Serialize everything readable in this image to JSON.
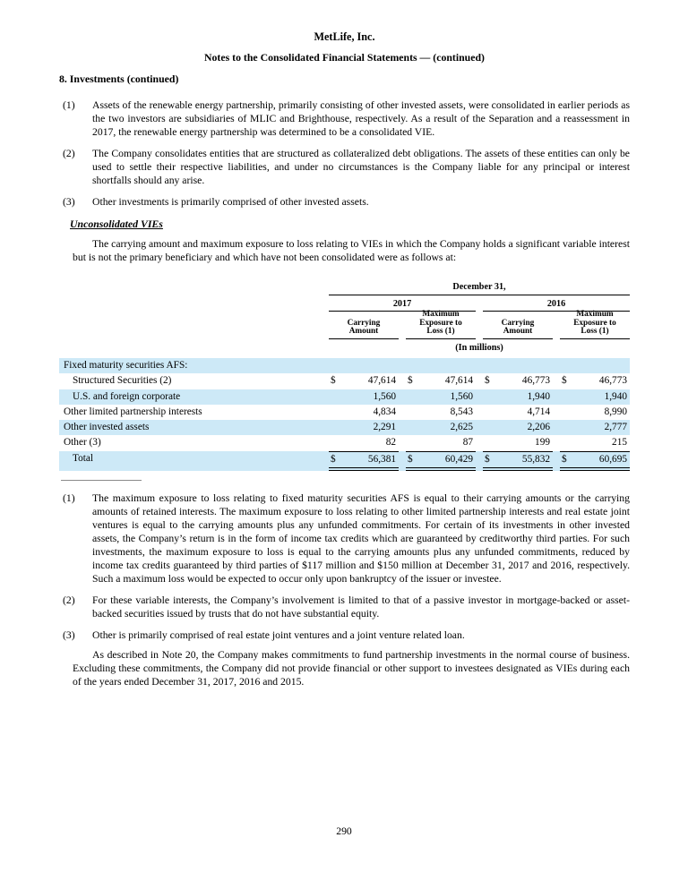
{
  "header": {
    "company": "MetLife, Inc.",
    "subtitle": "Notes to the Consolidated Financial Statements — (continued)",
    "section": "8. Investments (continued)"
  },
  "notes": [
    {
      "num": "(1)",
      "text": "Assets of the renewable energy partnership, primarily consisting of other invested assets, were consolidated in earlier periods as the two investors are subsidiaries of MLIC and Brighthouse, respectively. As a result of the Separation and a reassessment in 2017, the renewable energy partnership was determined to be a consolidated VIE."
    },
    {
      "num": "(2)",
      "text": "The Company consolidates entities that are structured as collateralized debt obligations. The assets of these entities can only be used to settle their respective liabilities, and under no circumstances is the Company liable for any principal or interest shortfalls should any arise."
    },
    {
      "num": "(3)",
      "text": "Other investments is primarily comprised of other invested assets."
    }
  ],
  "unconsolidated": {
    "heading": "Unconsolidated VIEs",
    "intro": "The carrying amount and maximum exposure to loss relating to VIEs in which the Company holds a significant variable interest but is not the primary beneficiary and which have not been consolidated were as follows at:"
  },
  "table": {
    "date_header": "December 31,",
    "years": [
      "2017",
      "2016"
    ],
    "col_headers": [
      "Carrying Amount",
      "Maximum Exposure to Loss (1)",
      "Carrying Amount",
      "Maximum Exposure to Loss (1)"
    ],
    "units": "(In millions)",
    "rows": [
      {
        "label": "Fixed maturity securities AFS:",
        "currency": "",
        "values": [
          "",
          "",
          "",
          ""
        ]
      },
      {
        "label": "Structured Securities (2)",
        "currency": "$",
        "values": [
          "47,614",
          "47,614",
          "46,773",
          "46,773"
        ]
      },
      {
        "label": "U.S. and foreign corporate",
        "currency": "",
        "values": [
          "1,560",
          "1,560",
          "1,940",
          "1,940"
        ]
      },
      {
        "label": "Other limited partnership interests",
        "currency": "",
        "values": [
          "4,834",
          "8,543",
          "4,714",
          "8,990"
        ]
      },
      {
        "label": "Other invested assets",
        "currency": "",
        "values": [
          "2,291",
          "2,625",
          "2,206",
          "2,777"
        ]
      },
      {
        "label": "Other (3)",
        "currency": "",
        "values": [
          "82",
          "87",
          "199",
          "215"
        ]
      },
      {
        "label": "Total",
        "currency": "$",
        "values": [
          "56,381",
          "60,429",
          "55,832",
          "60,695"
        ]
      }
    ]
  },
  "footnotes": [
    {
      "num": "(1)",
      "text": "The maximum exposure to loss relating to fixed maturity securities AFS is equal to their carrying amounts or the carrying amounts of retained interests. The maximum exposure to loss relating to other limited partnership interests and real estate joint ventures is equal to the carrying amounts plus any unfunded commitments. For certain of its investments in other invested assets, the Company’s return is in the form of income tax credits which are guaranteed by creditworthy third parties. For such investments, the maximum exposure to loss is equal to the carrying amounts plus any unfunded commitments, reduced by income tax credits guaranteed by third parties of $117 million and $150 million at December 31, 2017 and 2016, respectively. Such a maximum loss would be expected to occur only upon bankruptcy of the issuer or investee."
    },
    {
      "num": "(2)",
      "text": "For these variable interests, the Company’s involvement is limited to that of a passive investor in mortgage-backed or asset-backed securities issued by trusts that do not have substantial equity."
    },
    {
      "num": "(3)",
      "text": "Other is primarily comprised of real estate joint ventures and a joint venture related loan."
    }
  ],
  "closing": "As described in Note 20, the Company makes commitments to fund partnership investments in the normal course of business. Excluding these commitments, the Company did not provide financial or other support to investees designated as VIEs during each of the years ended December 31, 2017, 2016 and 2015.",
  "page_number": "290",
  "colors": {
    "row_highlight": "#cde9f7"
  }
}
